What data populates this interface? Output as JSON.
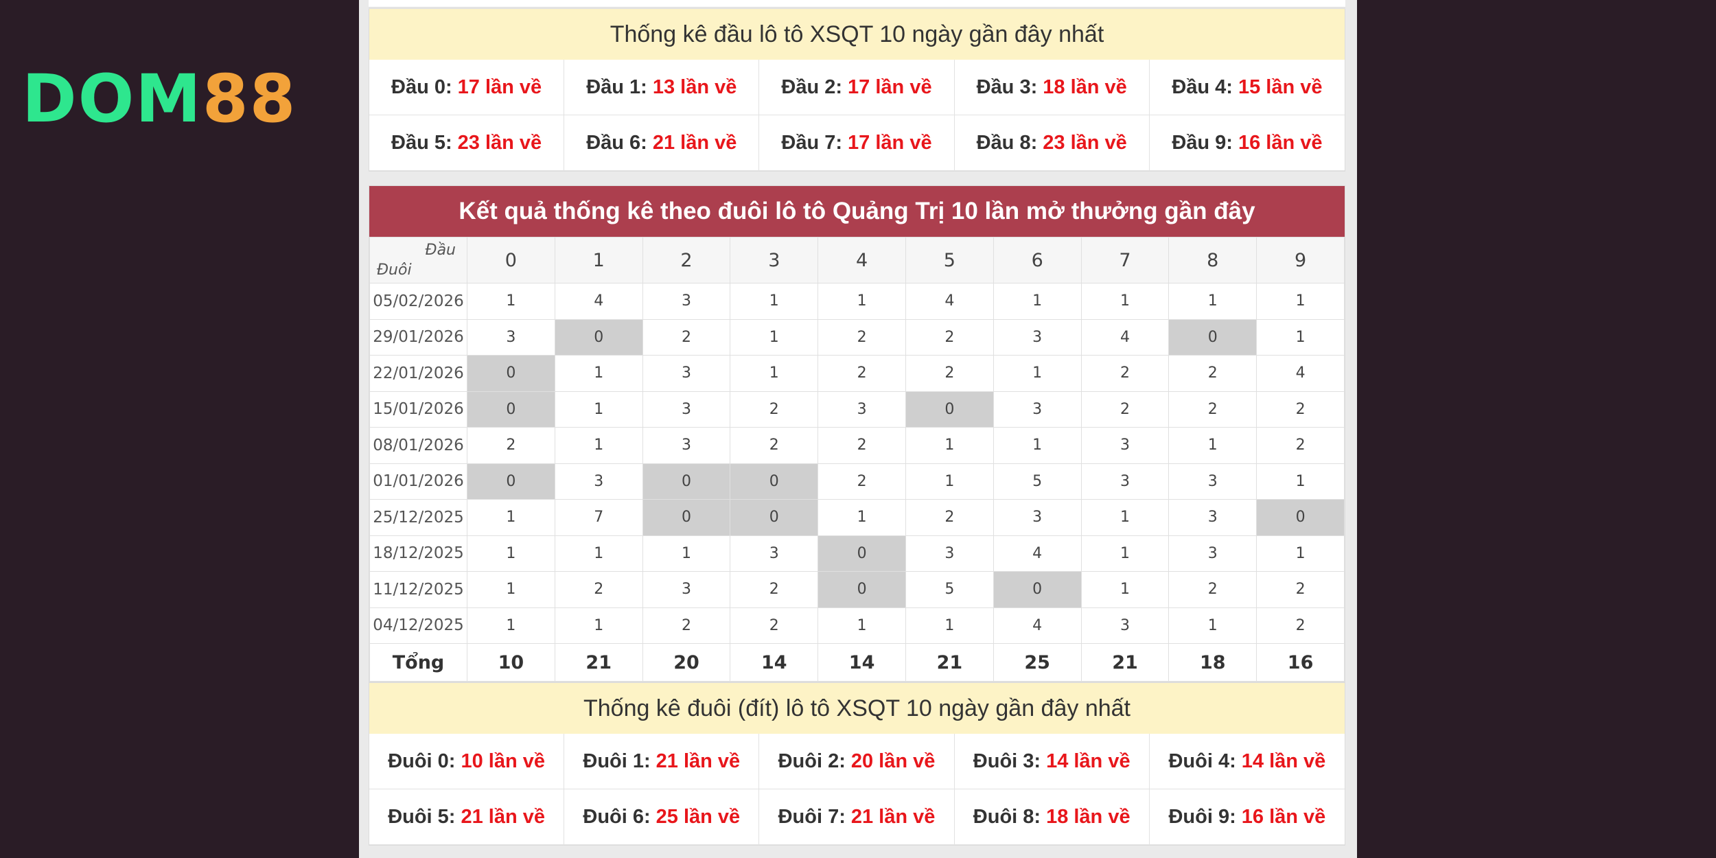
{
  "logo": {
    "part1": "DOM",
    "part2": "88"
  },
  "dau_stats": {
    "title": "Thống kê đầu lô tô XSQT 10 ngày gần đây nhất",
    "items": [
      {
        "label": "Đầu 0:",
        "value": "17 lần về"
      },
      {
        "label": "Đầu 1:",
        "value": "13 lần về"
      },
      {
        "label": "Đầu 2:",
        "value": "17 lần về"
      },
      {
        "label": "Đầu 3:",
        "value": "18 lần về"
      },
      {
        "label": "Đầu 4:",
        "value": "15 lần về"
      },
      {
        "label": "Đầu 5:",
        "value": "23 lần về"
      },
      {
        "label": "Đầu 6:",
        "value": "21 lần về"
      },
      {
        "label": "Đầu 7:",
        "value": "17 lần về"
      },
      {
        "label": "Đầu 8:",
        "value": "23 lần về"
      },
      {
        "label": "Đầu 9:",
        "value": "16 lần về"
      }
    ]
  },
  "result_table": {
    "title": "Kết quả thống kê theo đuôi lô tô Quảng Trị 10 lần mở thưởng gần đây",
    "corner_top": "Đầu",
    "corner_bottom": "Đuôi",
    "columns": [
      "0",
      "1",
      "2",
      "3",
      "4",
      "5",
      "6",
      "7",
      "8",
      "9"
    ],
    "rows": [
      {
        "date": "05/02/2026",
        "values": [
          "1",
          "4",
          "3",
          "1",
          "1",
          "4",
          "1",
          "1",
          "1",
          "1"
        ],
        "zero_highlight": []
      },
      {
        "date": "29/01/2026",
        "values": [
          "3",
          "0",
          "2",
          "1",
          "2",
          "2",
          "3",
          "4",
          "0",
          "1"
        ],
        "zero_highlight": [
          1,
          8
        ]
      },
      {
        "date": "22/01/2026",
        "values": [
          "0",
          "1",
          "3",
          "1",
          "2",
          "2",
          "1",
          "2",
          "2",
          "4"
        ],
        "zero_highlight": [
          0
        ]
      },
      {
        "date": "15/01/2026",
        "values": [
          "0",
          "1",
          "3",
          "2",
          "3",
          "0",
          "3",
          "2",
          "2",
          "2"
        ],
        "zero_highlight": [
          0,
          5
        ]
      },
      {
        "date": "08/01/2026",
        "values": [
          "2",
          "1",
          "3",
          "2",
          "2",
          "1",
          "1",
          "3",
          "1",
          "2"
        ],
        "zero_highlight": []
      },
      {
        "date": "01/01/2026",
        "values": [
          "0",
          "3",
          "0",
          "0",
          "2",
          "1",
          "5",
          "3",
          "3",
          "1"
        ],
        "zero_highlight": [
          0,
          2,
          3
        ]
      },
      {
        "date": "25/12/2025",
        "values": [
          "1",
          "7",
          "0",
          "0",
          "1",
          "2",
          "3",
          "1",
          "3",
          "0"
        ],
        "zero_highlight": [
          2,
          3,
          9
        ]
      },
      {
        "date": "18/12/2025",
        "values": [
          "1",
          "1",
          "1",
          "3",
          "0",
          "3",
          "4",
          "1",
          "3",
          "1"
        ],
        "zero_highlight": [
          4
        ]
      },
      {
        "date": "11/12/2025",
        "values": [
          "1",
          "2",
          "3",
          "2",
          "0",
          "5",
          "0",
          "1",
          "2",
          "2"
        ],
        "zero_highlight": [
          4,
          6
        ]
      },
      {
        "date": "04/12/2025",
        "values": [
          "1",
          "1",
          "2",
          "2",
          "1",
          "1",
          "4",
          "3",
          "1",
          "2"
        ],
        "zero_highlight": []
      }
    ],
    "total_label": "Tổng",
    "totals": [
      "10",
      "21",
      "20",
      "14",
      "14",
      "21",
      "25",
      "21",
      "18",
      "16"
    ]
  },
  "duoi_stats": {
    "title": "Thống kê đuôi (đít) lô tô XSQT 10 ngày gần đây nhất",
    "items": [
      {
        "label": "Đuôi 0:",
        "value": "10 lần về"
      },
      {
        "label": "Đuôi 1:",
        "value": "21 lần về"
      },
      {
        "label": "Đuôi 2:",
        "value": "20 lần về"
      },
      {
        "label": "Đuôi 3:",
        "value": "14 lần về"
      },
      {
        "label": "Đuôi 4:",
        "value": "14 lần về"
      },
      {
        "label": "Đuôi 5:",
        "value": "21 lần về"
      },
      {
        "label": "Đuôi 6:",
        "value": "25 lần về"
      },
      {
        "label": "Đuôi 7:",
        "value": "21 lần về"
      },
      {
        "label": "Đuôi 8:",
        "value": "18 lần về"
      },
      {
        "label": "Đuôi 9:",
        "value": "16 lần về"
      }
    ]
  },
  "colors": {
    "header_bg": "#ac3f4e",
    "title_bg": "#fdf3c6",
    "count_red": "#e8161b",
    "zero_cell": "#cfcfcf",
    "page_bg": "#2a1c26"
  }
}
